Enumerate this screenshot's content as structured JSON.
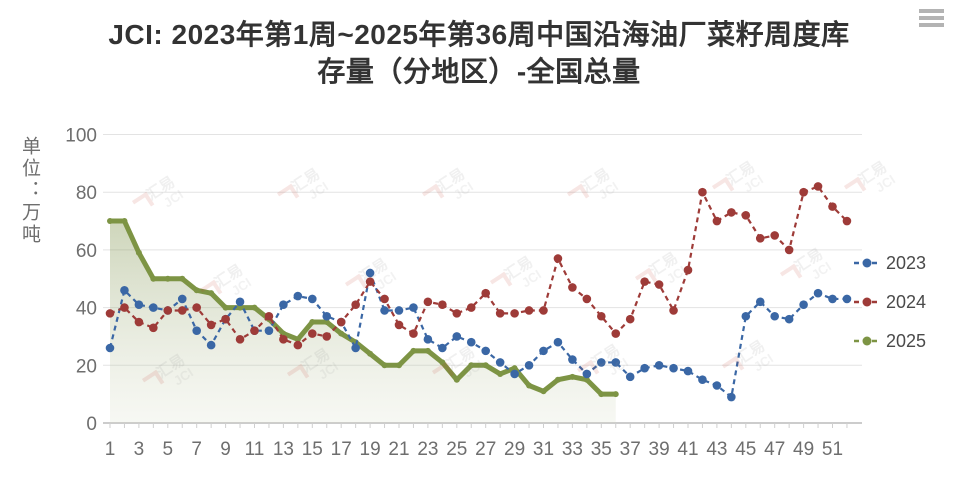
{
  "header": {
    "title": "JCI: 2023年第1周~2025年第36周中国沿海油厂菜籽周度库存量（分地区）-全国总量"
  },
  "icons": {
    "menu": "hamburger-menu-icon"
  },
  "y_axis": {
    "unit_label": "单位：万吨",
    "ticks": [
      0,
      20,
      40,
      60,
      80,
      100
    ]
  },
  "x_axis": {
    "tick_labels": [
      "1",
      "3",
      "5",
      "7",
      "9",
      "11",
      "13",
      "15",
      "17",
      "19",
      "21",
      "23",
      "25",
      "27",
      "29",
      "31",
      "33",
      "35",
      "37",
      "39",
      "41",
      "43",
      "45",
      "47",
      "49",
      "51"
    ],
    "weeks_total": 52
  },
  "legend": [
    {
      "label": "2023",
      "color": "#3a67a5"
    },
    {
      "label": "2024",
      "color": "#9e3b38"
    },
    {
      "label": "2025",
      "color": "#7d9444"
    }
  ],
  "watermark": {
    "text_cn": "汇易",
    "text_en": "JCI"
  },
  "colors": {
    "grid": "#e3e3e3",
    "axis": "#bcbcbc",
    "tick_text": "#6e6e6e",
    "title_text": "#333333"
  },
  "chart_data": {
    "type": "line",
    "title": "JCI: 2023年第1周~2025年第36周中国沿海油厂菜籽周度库存量（分地区）-全国总量",
    "ylabel": "单位：万吨",
    "ylim": [
      0,
      100
    ],
    "grid": true,
    "legend_position": "right",
    "x_weeks": [
      1,
      2,
      3,
      4,
      5,
      6,
      7,
      8,
      9,
      10,
      11,
      12,
      13,
      14,
      15,
      16,
      17,
      18,
      19,
      20,
      21,
      22,
      23,
      24,
      25,
      26,
      27,
      28,
      29,
      30,
      31,
      32,
      33,
      34,
      35,
      36,
      37,
      38,
      39,
      40,
      41,
      42,
      43,
      44,
      45,
      46,
      47,
      48,
      49,
      50,
      51,
      52
    ],
    "series": [
      {
        "name": "2023",
        "style": "dashed",
        "color": "#3a67a5",
        "values": [
          26,
          46,
          41,
          40,
          39,
          43,
          32,
          27,
          36,
          42,
          32,
          32,
          41,
          44,
          43,
          37,
          35,
          26,
          52,
          39,
          39,
          40,
          29,
          26,
          30,
          28,
          25,
          21,
          17,
          20,
          25,
          28,
          22,
          17,
          21,
          21,
          16,
          19,
          20,
          19,
          18,
          15,
          13,
          9,
          37,
          42,
          37,
          36,
          41,
          45,
          43,
          43
        ]
      },
      {
        "name": "2024",
        "style": "dashed",
        "color": "#9e3b38",
        "values": [
          38,
          40,
          35,
          33,
          39,
          39,
          40,
          34,
          36,
          29,
          32,
          37,
          29,
          27,
          31,
          30,
          35,
          41,
          49,
          43,
          34,
          31,
          42,
          41,
          38,
          40,
          45,
          38,
          38,
          39,
          39,
          57,
          47,
          43,
          37,
          31,
          36,
          49,
          48,
          39,
          53,
          80,
          70,
          73,
          72,
          64,
          65,
          60,
          80,
          82,
          75,
          70
        ]
      },
      {
        "name": "2025",
        "style": "solid-area",
        "color": "#7d9444",
        "values": [
          70,
          70,
          59,
          50,
          50,
          50,
          46,
          45,
          40,
          40,
          40,
          36,
          31,
          29,
          35,
          35,
          31,
          28,
          24,
          20,
          20,
          25,
          25,
          21,
          15,
          20,
          20,
          17,
          19,
          13,
          11,
          15,
          16,
          15,
          10,
          10
        ]
      }
    ]
  }
}
